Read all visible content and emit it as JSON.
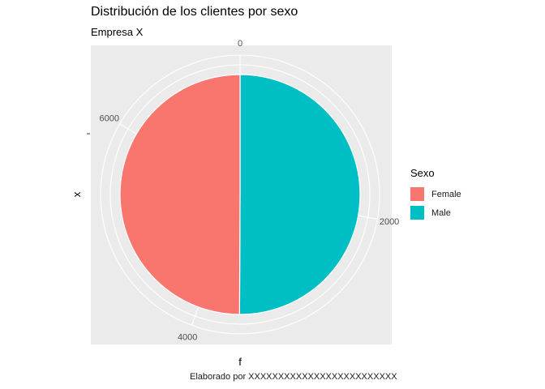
{
  "title": "Distribución de los clientes por sexo",
  "subtitle": "Empresa X",
  "caption": "Elaborado por XXXXXXXXXXXXXXXXXXXXXXXXX",
  "chart_data": {
    "type": "pie",
    "title": "Distribución de los clientes por sexo",
    "subtitle": "Empresa X",
    "xlabel": "f",
    "ylabel": "x",
    "total": 7190,
    "slices": [
      {
        "label": "Female",
        "value": 3590,
        "color": "#F8766D"
      },
      {
        "label": "Male",
        "value": 3600,
        "color": "#00BFC4"
      }
    ],
    "radial_ticks": [
      "0",
      "2000",
      "4000",
      "6000"
    ],
    "tick_values": [
      0,
      2000,
      4000,
      6000
    ],
    "legend": {
      "title": "Sexo",
      "placement": "right"
    },
    "panel_background": "#EBEBEB",
    "grid": true
  }
}
